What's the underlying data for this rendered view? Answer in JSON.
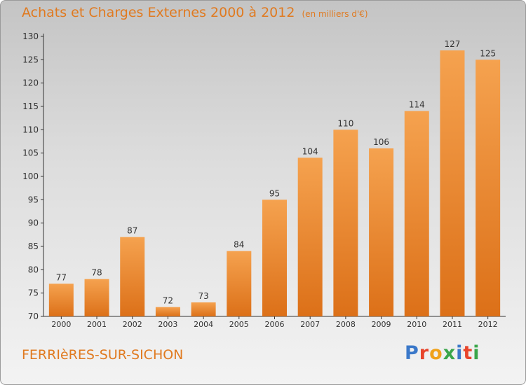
{
  "header": {
    "title": "Achats et Charges Externes 2000 à 2012",
    "unit": "(en milliers d'€)"
  },
  "footer": {
    "commune": "FERRIèRES-SUR-SICHON",
    "brand": "Proxiti",
    "brand_colors": [
      "#3a78c9",
      "#e8452c",
      "#f0a21a",
      "#3aa64a",
      "#3a78c9",
      "#e8452c",
      "#3aa64a"
    ]
  },
  "colors": {
    "bar_top": "#f5a24f",
    "bar_bottom": "#dc7018",
    "title": "#e07a20"
  },
  "chart_data": {
    "type": "bar",
    "categories": [
      "2000",
      "2001",
      "2002",
      "2003",
      "2004",
      "2005",
      "2006",
      "2007",
      "2008",
      "2009",
      "2010",
      "2011",
      "2012"
    ],
    "values": [
      77,
      78,
      87,
      72,
      73,
      84,
      95,
      104,
      110,
      106,
      114,
      127,
      125
    ],
    "ylim": [
      70,
      130
    ],
    "yticks": [
      70,
      75,
      80,
      85,
      90,
      95,
      100,
      105,
      110,
      115,
      120,
      125,
      130
    ],
    "grid": false
  }
}
